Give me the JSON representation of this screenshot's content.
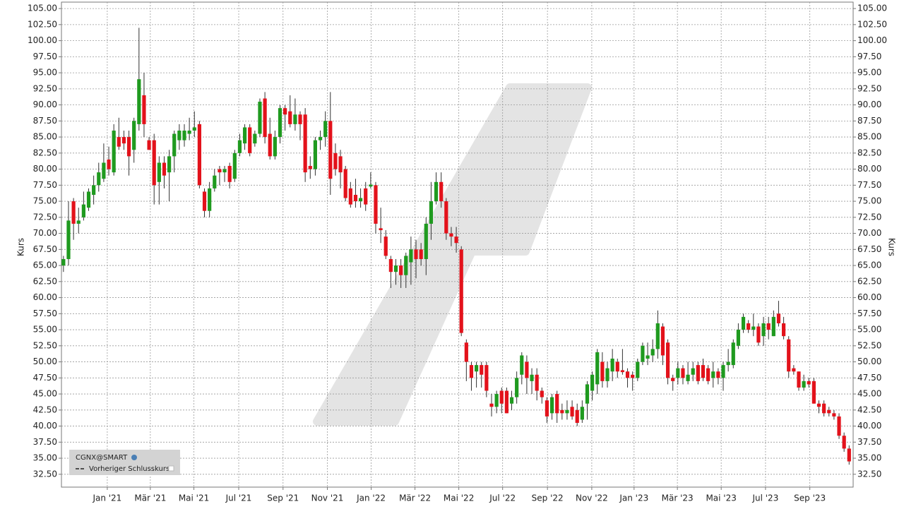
{
  "chart_data": {
    "type": "candlestick",
    "name": "CGNX@SMART",
    "reference_line_label": "Vorheriger Schlusskurs",
    "y_label": "Kurs",
    "up_color": "#1f9a1f",
    "down_color": "#e3121b",
    "grid": true,
    "xlim": [
      -0.4,
      156.8
    ],
    "xticks": [
      {
        "value": 8.7,
        "label": "Jan '21"
      },
      {
        "value": 17.25,
        "label": "Mär '21"
      },
      {
        "value": 25.9,
        "label": "Mai '21"
      },
      {
        "value": 34.8,
        "label": "Jul '21"
      },
      {
        "value": 43.6,
        "label": "Sep '21"
      },
      {
        "value": 52.4,
        "label": "Nov '21"
      },
      {
        "value": 61.1,
        "label": "Jan '22"
      },
      {
        "value": 69.8,
        "label": "Mär '22"
      },
      {
        "value": 78.5,
        "label": "Mai '22"
      },
      {
        "value": 87.2,
        "label": "Jul '22"
      },
      {
        "value": 96.1,
        "label": "Sep '22"
      },
      {
        "value": 104.9,
        "label": "Nov '22"
      },
      {
        "value": 113.3,
        "label": "Jan '23"
      },
      {
        "value": 121.9,
        "label": "Mär '23"
      },
      {
        "value": 130.6,
        "label": "Mai '23"
      },
      {
        "value": 139.4,
        "label": "Jul '23"
      },
      {
        "value": 148.2,
        "label": "Sep '23"
      }
    ],
    "ylim": [
      30.5,
      106
    ],
    "yticks": [
      {
        "value": 32.5,
        "label": "32.50"
      },
      {
        "value": 35,
        "label": "35.00"
      },
      {
        "value": 37.5,
        "label": "37.50"
      },
      {
        "value": 40,
        "label": "40.00"
      },
      {
        "value": 42.5,
        "label": "42.50"
      },
      {
        "value": 45,
        "label": "45.00"
      },
      {
        "value": 47.5,
        "label": "47.50"
      },
      {
        "value": 50,
        "label": "50.00"
      },
      {
        "value": 52.5,
        "label": "52.50"
      },
      {
        "value": 55,
        "label": "55.00"
      },
      {
        "value": 57.5,
        "label": "57.50"
      },
      {
        "value": 60,
        "label": "60.00"
      },
      {
        "value": 62.5,
        "label": "62.50"
      },
      {
        "value": 65,
        "label": "65.00"
      },
      {
        "value": 67.5,
        "label": "67.50"
      },
      {
        "value": 70,
        "label": "70.00"
      },
      {
        "value": 72.5,
        "label": "72.50"
      },
      {
        "value": 75,
        "label": "75.00"
      },
      {
        "value": 77.5,
        "label": "77.50"
      },
      {
        "value": 80,
        "label": "80.00"
      },
      {
        "value": 82.5,
        "label": "82.50"
      },
      {
        "value": 85,
        "label": "85.00"
      },
      {
        "value": 87.5,
        "label": "87.50"
      },
      {
        "value": 90,
        "label": "90.00"
      },
      {
        "value": 92.5,
        "label": "92.50"
      },
      {
        "value": 95,
        "label": "95.00"
      },
      {
        "value": 97.5,
        "label": "97.50"
      },
      {
        "value": 100,
        "label": "100.00"
      },
      {
        "value": 102.5,
        "label": "102.50"
      },
      {
        "value": 105,
        "label": "105.00"
      }
    ],
    "open": [
      65,
      66,
      75,
      71.5,
      72.5,
      74,
      76,
      77.5,
      78.5,
      81.5,
      79.5,
      85,
      85,
      85,
      83,
      87,
      91.5,
      84.5,
      84.5,
      78,
      81,
      79.5,
      82,
      84.5,
      84.5,
      85.5,
      86,
      87,
      76.5,
      73.5,
      77,
      80,
      79.5,
      80.5,
      78.5,
      82.5,
      84,
      86.5,
      84,
      85.5,
      91,
      85.5,
      82,
      85,
      89.5,
      89,
      87,
      88.5,
      88.5,
      80.5,
      80,
      84.5,
      85,
      87.5,
      82.5,
      82,
      80,
      77,
      76,
      75,
      77,
      77.3,
      77.5,
      70.8,
      69.5,
      66,
      64,
      65,
      63.5,
      65.5,
      67.5,
      67.5,
      66,
      71.5,
      75,
      78,
      75,
      70,
      69.5,
      67.5,
      53,
      49.5,
      48.5,
      49.5,
      49.5,
      43.5,
      43,
      45.5,
      45.5,
      43.5,
      44.5,
      48,
      50,
      47,
      48,
      45.5,
      44,
      42,
      45,
      42.5,
      42,
      43,
      42.5,
      41,
      43.5,
      45.5,
      46.5,
      50,
      47,
      48.5,
      50,
      48.7,
      48.5,
      48,
      47.5,
      50,
      50.5,
      51,
      52,
      55.5,
      53,
      47.5,
      47.5,
      49,
      47,
      48,
      49.5,
      49.5,
      49,
      47.5,
      48.5,
      47.5,
      49.5,
      49.5,
      52.5,
      55,
      56,
      55,
      55.5,
      54,
      56,
      54,
      57.5,
      56,
      53.5,
      49,
      48.5,
      46,
      47,
      47,
      43.5,
      43.5,
      42.5,
      42,
      41.5,
      38.5,
      36.5
    ],
    "high": [
      66.5,
      75,
      75.5,
      74,
      76.5,
      77,
      79,
      81,
      84,
      83.5,
      87,
      88,
      86,
      86,
      88,
      102,
      95,
      85,
      85.5,
      82,
      82,
      83,
      86,
      87,
      87,
      88,
      89,
      87.5,
      77,
      78,
      80,
      80.5,
      80.5,
      81,
      83,
      85.5,
      87,
      87,
      86,
      91,
      92,
      88,
      86,
      90,
      90,
      91.5,
      91,
      89,
      89.5,
      82,
      85,
      86,
      89,
      92,
      84,
      83,
      80.5,
      78,
      78.5,
      77,
      78,
      79.5,
      78,
      74,
      70.5,
      66.5,
      66,
      66,
      67,
      69.5,
      69,
      68.5,
      72.5,
      78,
      79.5,
      79.5,
      75.5,
      71,
      71,
      68,
      53.5,
      50,
      50,
      50,
      50,
      45,
      45.5,
      46,
      46,
      45.5,
      48.5,
      51.5,
      51,
      49,
      49,
      46,
      44.5,
      45,
      45.5,
      43.5,
      44,
      44,
      43.5,
      44,
      47,
      48.5,
      52,
      51.5,
      50,
      52,
      50.5,
      52,
      49,
      48.5,
      50.5,
      53,
      53,
      53.5,
      58,
      56,
      53.5,
      48,
      50,
      49.5,
      50,
      50,
      50,
      50.5,
      49.5,
      50,
      49,
      50,
      52,
      53.5,
      56,
      57.5,
      56.5,
      57.5,
      56,
      57,
      57,
      58,
      59.5,
      57,
      54,
      49.5,
      48.5,
      48,
      47.5,
      47.5,
      44,
      44,
      43,
      42.5,
      42,
      39,
      37
    ],
    "low": [
      64,
      65,
      69,
      70,
      72,
      73.5,
      74.5,
      76.5,
      78,
      79,
      79,
      83,
      83,
      79,
      81,
      86,
      85,
      83,
      74.5,
      74.5,
      77,
      75,
      79.5,
      83,
      83.5,
      84.5,
      85,
      77,
      72.5,
      72.5,
      76.5,
      77.5,
      78,
      77,
      78,
      82,
      83,
      82,
      83.5,
      85,
      84,
      81.5,
      81.5,
      84,
      86,
      86.5,
      86,
      84.5,
      78,
      78.5,
      79,
      83,
      83.5,
      76,
      79,
      77,
      75,
      74,
      74,
      74,
      73.5,
      77,
      70,
      68.5,
      66,
      61.5,
      62,
      61.5,
      61.5,
      62,
      63,
      65,
      63.5,
      69,
      74.5,
      74,
      69,
      68,
      67,
      54,
      47,
      45.5,
      46,
      46,
      44.5,
      41.5,
      42,
      42,
      42,
      42.5,
      43.5,
      46.5,
      45,
      45,
      44,
      43.5,
      40.5,
      41,
      40.5,
      41,
      41,
      41,
      40,
      40.5,
      41,
      44,
      45,
      46,
      46,
      47,
      47.5,
      48,
      46,
      45.5,
      47,
      49.5,
      49.5,
      50,
      50.5,
      49.5,
      46.5,
      45.5,
      46.5,
      46.5,
      46.5,
      47,
      46.5,
      47,
      46.5,
      46,
      46.5,
      45.5,
      48.5,
      49,
      52,
      54.5,
      54.5,
      54,
      52.5,
      52.5,
      53.5,
      54,
      55.5,
      53.5,
      47.5,
      48,
      45.5,
      45.5,
      46,
      43.5,
      42,
      41.5,
      41.5,
      41,
      38,
      36,
      34
    ],
    "close": [
      66,
      72,
      71.5,
      72,
      74.5,
      76.5,
      77.5,
      79.5,
      81,
      80,
      86,
      83.5,
      84,
      82,
      87.5,
      94,
      87,
      83,
      77.5,
      81,
      79,
      82,
      85.5,
      86,
      86,
      86,
      86.5,
      77.5,
      73.5,
      77,
      79,
      79.5,
      80,
      78,
      82.5,
      84.5,
      86.5,
      82.5,
      85.5,
      90.5,
      85,
      82,
      85,
      89.5,
      88.5,
      87,
      88.5,
      87,
      79.5,
      80,
      84.5,
      85,
      87.5,
      78.5,
      80,
      79.5,
      75.5,
      74.5,
      75,
      75.5,
      74.5,
      77.6,
      71.5,
      70.5,
      66.5,
      64,
      65,
      63.5,
      66.5,
      67.5,
      66,
      66,
      71.5,
      75,
      78,
      75,
      70,
      69.5,
      68.5,
      54.5,
      50,
      47.5,
      49.5,
      48,
      45.5,
      43,
      45,
      43.5,
      42,
      44.5,
      47.5,
      51,
      47.5,
      48,
      45.5,
      44.5,
      41.5,
      44.5,
      42,
      42,
      42.5,
      41.5,
      40.5,
      43,
      46.5,
      48,
      51.5,
      47,
      49,
      50.5,
      48.5,
      48.4,
      47.5,
      47.5,
      50,
      52.5,
      51,
      52,
      56,
      51,
      47.5,
      47,
      49,
      47.5,
      48,
      49,
      47,
      47.5,
      47,
      48.5,
      47.5,
      49.5,
      50,
      53,
      55,
      57,
      55,
      55.5,
      53,
      56,
      55,
      57,
      56,
      54,
      48.5,
      48.5,
      46,
      47,
      46.5,
      43.5,
      43,
      42,
      42,
      41.5,
      38.5,
      36.5,
      34.5
    ]
  }
}
